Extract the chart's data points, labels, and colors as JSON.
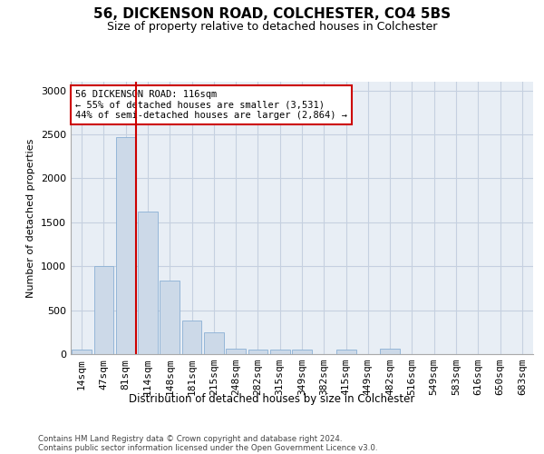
{
  "title1": "56, DICKENSON ROAD, COLCHESTER, CO4 5BS",
  "title2": "Size of property relative to detached houses in Colchester",
  "xlabel": "Distribution of detached houses by size in Colchester",
  "ylabel": "Number of detached properties",
  "categories": [
    "14sqm",
    "47sqm",
    "81sqm",
    "114sqm",
    "148sqm",
    "181sqm",
    "215sqm",
    "248sqm",
    "282sqm",
    "315sqm",
    "349sqm",
    "382sqm",
    "415sqm",
    "449sqm",
    "482sqm",
    "516sqm",
    "549sqm",
    "583sqm",
    "616sqm",
    "650sqm",
    "683sqm"
  ],
  "values": [
    55,
    1000,
    2470,
    1620,
    840,
    380,
    250,
    60,
    50,
    50,
    50,
    0,
    50,
    0,
    60,
    0,
    0,
    0,
    0,
    0,
    0
  ],
  "bar_color": "#ccd9e8",
  "bar_edge_color": "#8aafd4",
  "grid_color": "#c5d0e0",
  "background_color": "#e8eef5",
  "marker_bin_index": 2,
  "marker_color": "#cc0000",
  "annotation_text": "56 DICKENSON ROAD: 116sqm\n← 55% of detached houses are smaller (3,531)\n44% of semi-detached houses are larger (2,864) →",
  "annotation_box_color": "#ffffff",
  "annotation_box_edge": "#cc0000",
  "ylim": [
    0,
    3100
  ],
  "yticks": [
    0,
    500,
    1000,
    1500,
    2000,
    2500,
    3000
  ],
  "footer1": "Contains HM Land Registry data © Crown copyright and database right 2024.",
  "footer2": "Contains public sector information licensed under the Open Government Licence v3.0."
}
